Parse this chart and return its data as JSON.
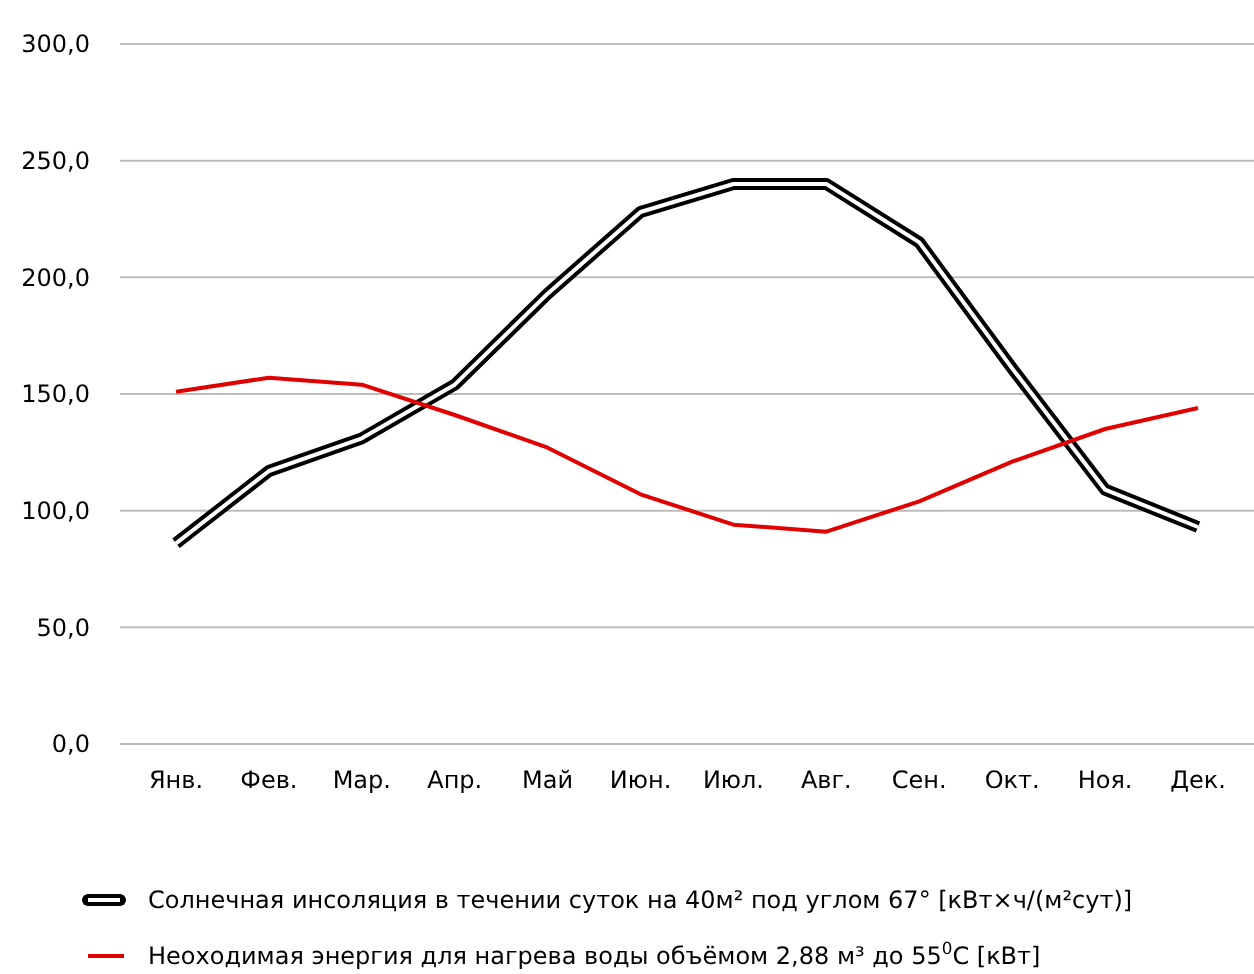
{
  "chart_data": {
    "type": "line",
    "categories": [
      "Янв.",
      "Фев.",
      "Мар.",
      "Апр.",
      "Май",
      "Июн.",
      "Июл.",
      "Авг.",
      "Сен.",
      "Окт.",
      "Ноя.",
      "Дек."
    ],
    "series": [
      {
        "name": "Солнечная инсоляция в течении суток на 40м² под углом 67° [кВт×ч/(м²сут)]",
        "color": "#000000",
        "values": [
          86,
          117,
          131,
          154,
          193,
          228,
          240,
          240,
          215,
          161,
          109,
          93
        ]
      },
      {
        "name": "Неоходимая энергия для нагрева воды объёмом  2,88 м³ до 55$^{0}$C [кВт]",
        "color": "#e00000",
        "values": [
          151,
          157,
          154,
          141,
          127,
          107,
          94,
          91,
          104,
          121,
          135,
          144
        ]
      }
    ],
    "ylim": [
      0,
      300
    ],
    "yticks": [
      {
        "value": 0,
        "label": "0,0"
      },
      {
        "value": 50,
        "label": "50,0"
      },
      {
        "value": 100,
        "label": "100,0"
      },
      {
        "value": 150,
        "label": "150,0"
      },
      {
        "value": 200,
        "label": "200,0"
      },
      {
        "value": 250,
        "label": "250,0"
      },
      {
        "value": 300,
        "label": "300,0"
      }
    ],
    "grid": "y",
    "legend": "bottom",
    "marker": "none",
    "line_style": "solid"
  }
}
